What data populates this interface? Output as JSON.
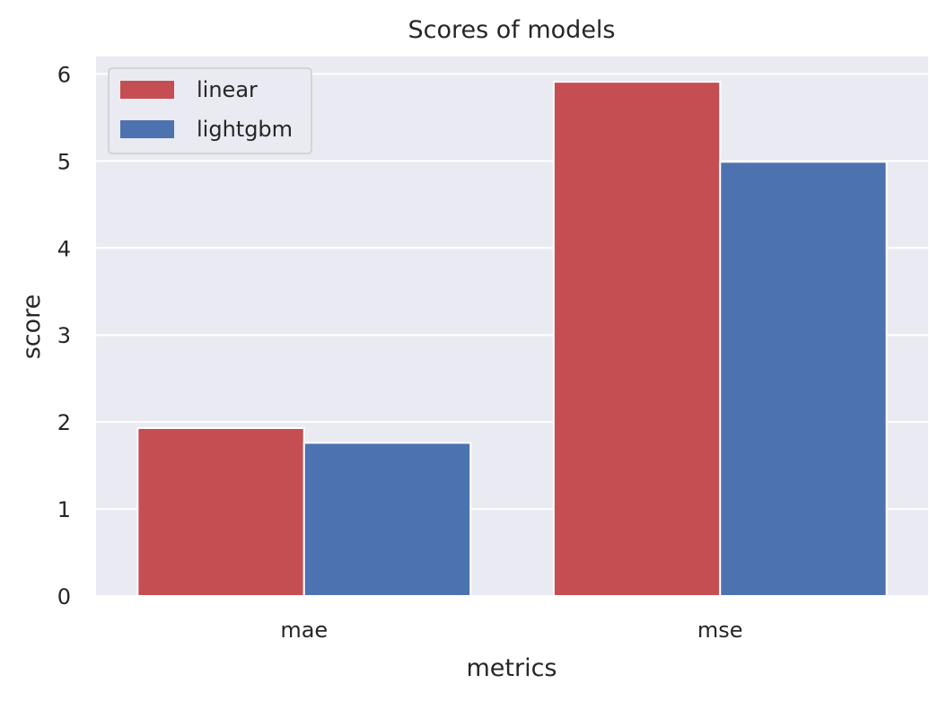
{
  "chart_data": {
    "type": "bar",
    "title": "Scores of models",
    "xlabel": "metrics",
    "ylabel": "score",
    "categories": [
      "mae",
      "mse"
    ],
    "series": [
      {
        "name": "linear",
        "values": [
          1.93,
          5.91
        ],
        "color": "#c44e52"
      },
      {
        "name": "lightgbm",
        "values": [
          1.76,
          4.99
        ],
        "color": "#4c72b0"
      }
    ],
    "ylim": [
      0,
      6.2
    ],
    "yticks": [
      0,
      1,
      2,
      3,
      4,
      5,
      6
    ],
    "grid": true,
    "legend_position": "top-left",
    "plot_background": "#eaeaf2",
    "grid_color": "#ffffff"
  }
}
